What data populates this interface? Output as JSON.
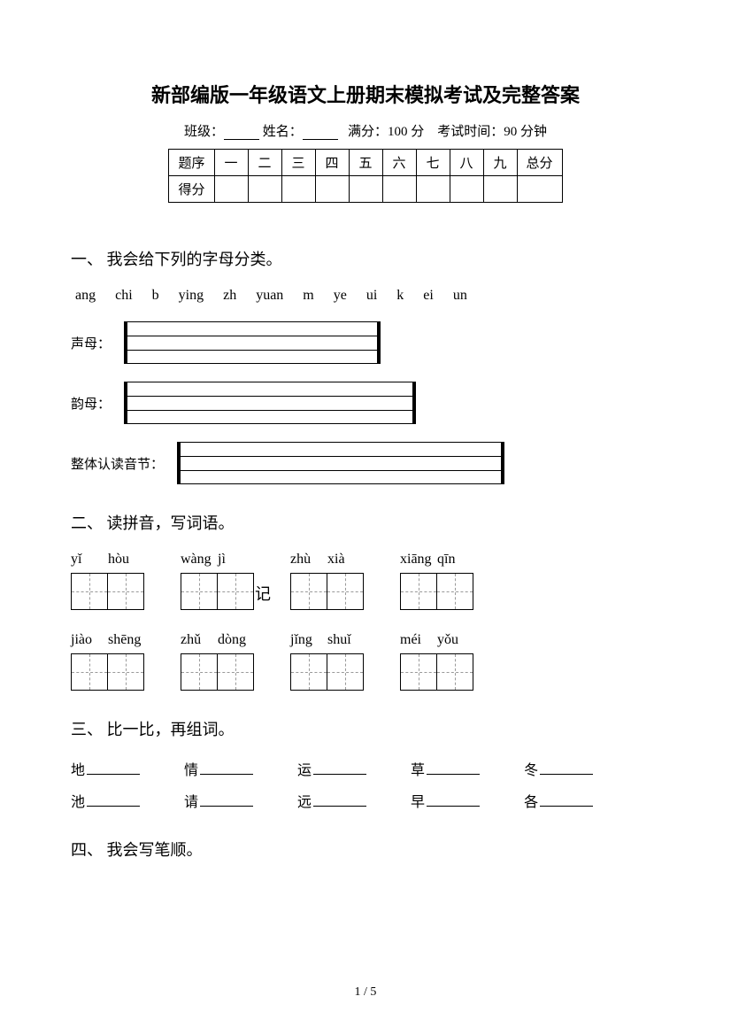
{
  "title": "新部编版一年级语文上册期末模拟考试及完整答案",
  "meta": {
    "class_label": "班级：",
    "name_label": "姓名：",
    "full_score_label": "满分：",
    "full_score_value": "100 分",
    "duration_label": "考试时间：",
    "duration_value": "90 分钟"
  },
  "score_table": {
    "row_header_1": "题序",
    "row_header_2": "得分",
    "cols": [
      "一",
      "二",
      "三",
      "四",
      "五",
      "六",
      "七",
      "八",
      "九",
      "总分"
    ]
  },
  "sections": {
    "s1": {
      "heading": "一、 我会给下列的字母分类。",
      "letters": "ang  chi b  ying  zh  yuan  m  ye  ui  k  ei  un",
      "cat1": "声母：",
      "cat2": "韵母：",
      "cat3": "整体认读音节：",
      "box_widths": {
        "cat1": 290,
        "cat2": 330,
        "cat3": 370
      }
    },
    "s2": {
      "heading": "二、 读拼音，写词语。",
      "row1": [
        {
          "py": [
            "yǐ",
            "hòu"
          ]
        },
        {
          "py": [
            "wàng",
            "jì"
          ],
          "extra_char": "记"
        },
        {
          "py": [
            "zhù",
            "xià"
          ]
        },
        {
          "py": [
            "xiāng",
            "qīn"
          ]
        }
      ],
      "row2": [
        {
          "py": [
            "jiào",
            "shēng"
          ]
        },
        {
          "py": [
            "zhǔ",
            "dòng"
          ]
        },
        {
          "py": [
            "jǐng",
            "shuǐ"
          ]
        },
        {
          "py": [
            "méi",
            "yǒu"
          ]
        }
      ]
    },
    "s3": {
      "heading": "三、 比一比，再组词。",
      "rows": [
        [
          "地",
          "情",
          "运",
          "草",
          "冬"
        ],
        [
          "池",
          "请",
          "远",
          "早",
          "各"
        ]
      ]
    },
    "s4": {
      "heading": "四、 我会写笔顺。"
    }
  },
  "pager": "1 / 5"
}
